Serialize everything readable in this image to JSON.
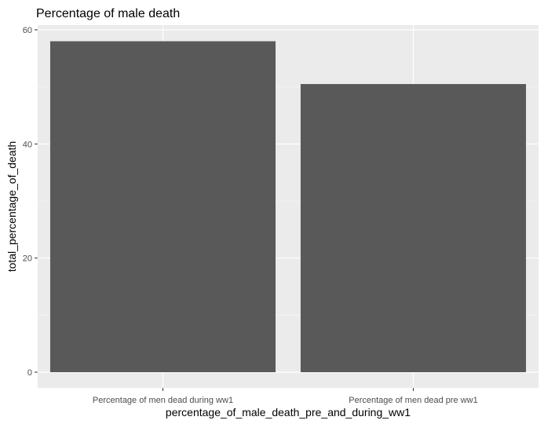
{
  "chart_data": {
    "type": "bar",
    "title": "Percentage of male death",
    "xlabel": "percentage_of_male_death_pre_and_during_ww1",
    "ylabel": "total_percentage_of_death",
    "categories": [
      "Percentage of men dead during ww1",
      "Percentage of men dead pre ww1"
    ],
    "values": [
      58,
      50.5
    ],
    "ylim": [
      0,
      60
    ],
    "yticks": [
      0,
      20,
      40,
      60
    ],
    "grid": true,
    "legend": "none",
    "colors": {
      "bar": "#595959",
      "panel": "#ebebeb",
      "grid_major": "#ffffff",
      "grid_minor": "#f5f5f5",
      "tick": "#333333"
    }
  }
}
